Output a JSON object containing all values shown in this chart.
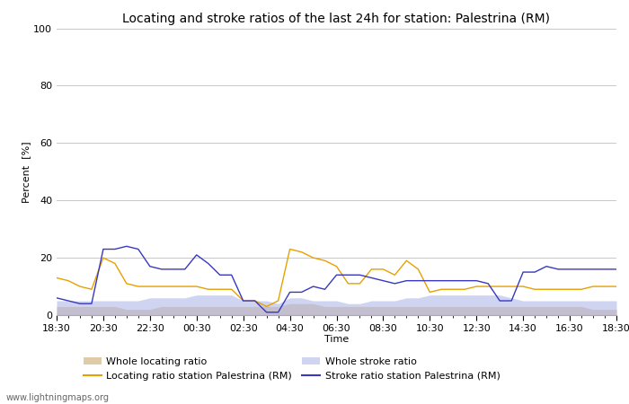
{
  "title": "Locating and stroke ratios of the last 24h for station: Palestrina (RM)",
  "xlabel": "Time",
  "ylabel": "Percent  [%]",
  "ylim": [
    0,
    100
  ],
  "yticks": [
    0,
    20,
    40,
    60,
    80,
    100
  ],
  "watermark": "www.lightningmaps.org",
  "x_major_labels": [
    "18:30",
    "20:30",
    "22:30",
    "00:30",
    "02:30",
    "04:30",
    "06:30",
    "08:30",
    "10:30",
    "12:30",
    "14:30",
    "16:30",
    "18:30"
  ],
  "x_major_pos": [
    0,
    4,
    8,
    12,
    16,
    20,
    24,
    28,
    32,
    36,
    40,
    44,
    48
  ],
  "n_points": 49,
  "whole_locating": [
    3,
    3,
    3,
    3,
    3,
    3,
    2,
    2,
    2,
    3,
    3,
    3,
    3,
    3,
    3,
    3,
    3,
    3,
    3,
    3,
    4,
    4,
    4,
    3,
    3,
    3,
    3,
    3,
    3,
    3,
    3,
    3,
    3,
    3,
    3,
    3,
    3,
    3,
    3,
    3,
    3,
    3,
    3,
    3,
    3,
    3,
    2,
    2,
    2
  ],
  "whole_stroke": [
    5,
    5,
    5,
    5,
    5,
    5,
    5,
    5,
    6,
    6,
    6,
    6,
    7,
    7,
    7,
    7,
    5,
    5,
    5,
    4,
    6,
    6,
    5,
    5,
    5,
    4,
    4,
    5,
    5,
    5,
    6,
    6,
    7,
    7,
    7,
    7,
    7,
    7,
    7,
    6,
    5,
    5,
    5,
    5,
    5,
    5,
    5,
    5,
    5
  ],
  "locating_station": [
    13,
    12,
    10,
    9,
    20,
    18,
    11,
    10,
    10,
    10,
    10,
    10,
    10,
    9,
    9,
    9,
    5,
    5,
    3,
    5,
    23,
    22,
    20,
    19,
    17,
    11,
    11,
    16,
    16,
    14,
    19,
    16,
    8,
    9,
    9,
    9,
    10,
    10,
    10,
    10,
    10,
    9,
    9,
    9,
    9,
    9,
    10,
    10,
    10
  ],
  "stroke_station": [
    6,
    5,
    4,
    4,
    23,
    23,
    24,
    23,
    17,
    16,
    16,
    16,
    21,
    18,
    14,
    14,
    5,
    5,
    1,
    1,
    8,
    8,
    10,
    9,
    14,
    14,
    14,
    13,
    12,
    11,
    12,
    12,
    12,
    12,
    12,
    12,
    12,
    11,
    5,
    5,
    15,
    15,
    17,
    16,
    16,
    16,
    16,
    16,
    16
  ],
  "color_whole_locating": "#d4b483",
  "color_whole_stroke": "#b0b8e8",
  "color_locating_station": "#e8a000",
  "color_stroke_station": "#3838c0",
  "background_color": "#ffffff",
  "plot_bg_color": "#ffffff",
  "grid_color": "#c8c8c8",
  "title_fontsize": 10,
  "axis_fontsize": 8,
  "tick_fontsize": 8,
  "legend_fontsize": 8
}
